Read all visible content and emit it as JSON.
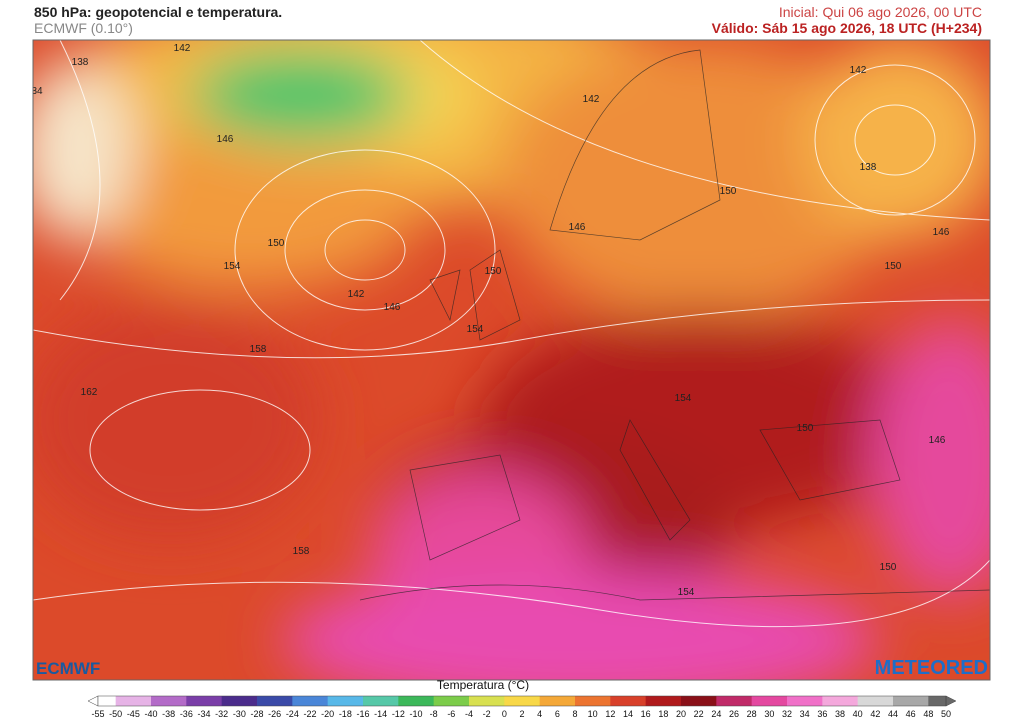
{
  "header": {
    "title": "850 hPa: geopotencial e temperatura.",
    "model": "ECMWF (0.10°)",
    "initial": "Inicial: Qui 06 ago 2026, 00 UTC",
    "valid": "Válido: Sáb 15 ago 2026, 18 UTC (H+234)"
  },
  "map": {
    "contour_labels": [
      142,
      138,
      34,
      146,
      150,
      154,
      142,
      146,
      150,
      154,
      158,
      162,
      158,
      142,
      146,
      150,
      142,
      138,
      146,
      150,
      154,
      150,
      146,
      150,
      154
    ]
  },
  "logos": {
    "left": "ECMWF",
    "right": "METEORED"
  },
  "colorbar": {
    "title": "Temperatura (°C)",
    "ticks": [
      -55,
      -50,
      -45,
      -40,
      -38,
      -36,
      -34,
      -32,
      -30,
      -28,
      -26,
      -24,
      -22,
      -20,
      -18,
      -16,
      -14,
      -12,
      -10,
      -8,
      -6,
      -4,
      -2,
      0,
      2,
      4,
      6,
      8,
      10,
      12,
      14,
      16,
      18,
      20,
      22,
      24,
      26,
      28,
      30,
      32,
      34,
      36,
      38,
      40,
      42,
      44,
      46,
      48,
      50
    ]
  }
}
